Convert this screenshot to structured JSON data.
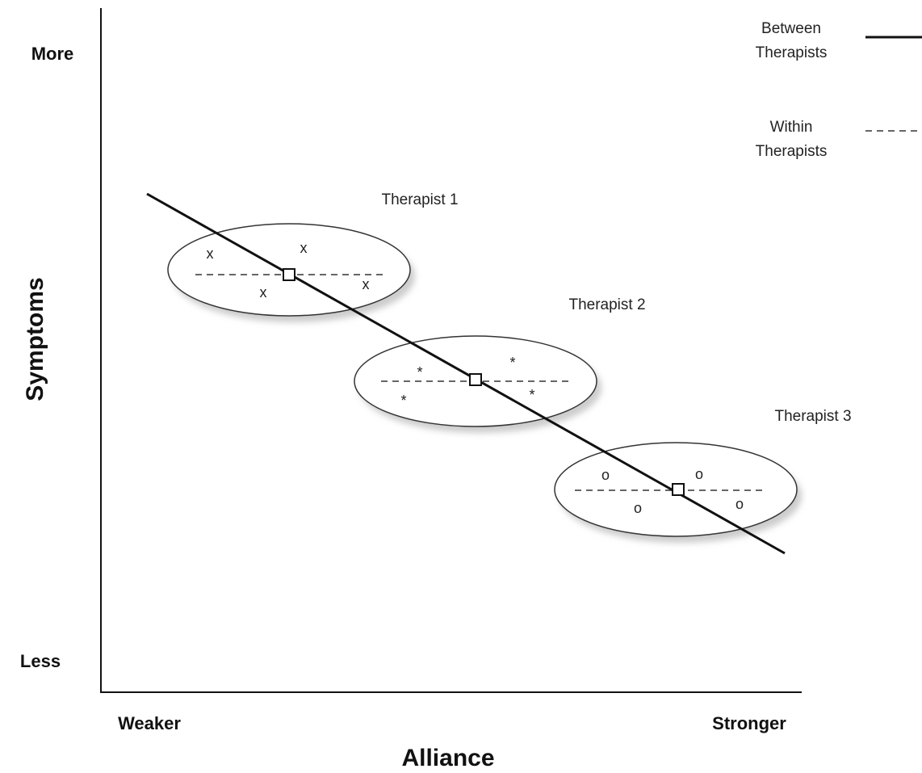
{
  "axes": {
    "y_label": "Symptoms",
    "y_top": "More",
    "y_bottom": "Less",
    "x_label": "Alliance",
    "x_left": "Weaker",
    "x_right": "Stronger"
  },
  "legend": [
    {
      "lines": [
        "Between",
        "Therapists"
      ]
    },
    {
      "lines": [
        "Within",
        "Therapists"
      ]
    }
  ],
  "groups": [
    {
      "label": "Therapist 1",
      "marker": "x"
    },
    {
      "label": "Therapist 2",
      "marker": "*"
    },
    {
      "label": "Therapist 3",
      "marker": "o"
    }
  ]
}
